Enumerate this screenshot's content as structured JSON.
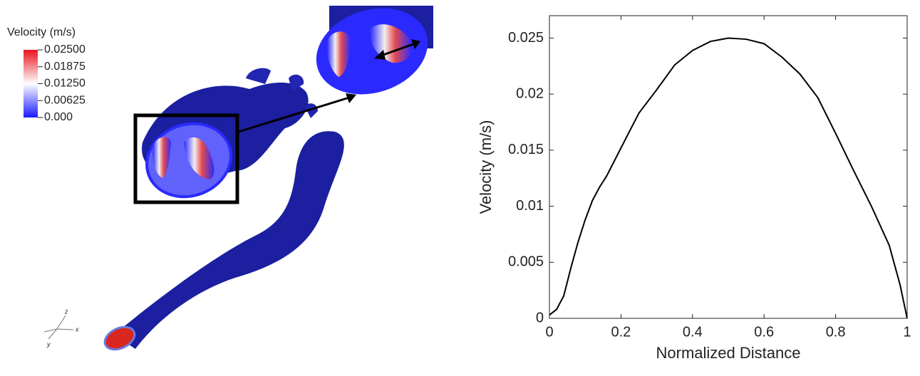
{
  "colorbar": {
    "title": "Velocity (m/s)",
    "ticks": [
      {
        "value": 0.025,
        "label": "0.02500"
      },
      {
        "value": 0.01875,
        "label": "0.01875"
      },
      {
        "value": 0.0125,
        "label": "0.01250"
      },
      {
        "value": 0.00625,
        "label": "0.00625"
      },
      {
        "value": 0,
        "label": "0.000"
      }
    ],
    "colors": [
      "#e8141c",
      "#ffffff",
      "#1a1aff"
    ]
  },
  "triad": [
    "z",
    "x",
    "y"
  ],
  "chart_data": {
    "type": "line",
    "xlabel": "Normalized Distance",
    "ylabel": "Velocity (m/s)",
    "color": "#000000",
    "x": [
      0,
      0.02,
      0.04,
      0.06,
      0.08,
      0.1,
      0.12,
      0.14,
      0.16,
      0.2,
      0.25,
      0.3,
      0.35,
      0.4,
      0.45,
      0.5,
      0.55,
      0.6,
      0.65,
      0.7,
      0.75,
      0.8,
      0.85,
      0.9,
      0.95,
      0.98,
      1
    ],
    "values": [
      0.0003,
      0.0008,
      0.002,
      0.0045,
      0.0068,
      0.0088,
      0.0105,
      0.0117,
      0.0127,
      0.0152,
      0.0183,
      0.0204,
      0.0226,
      0.0239,
      0.0247,
      0.025,
      0.0249,
      0.0245,
      0.0233,
      0.0218,
      0.0197,
      0.0165,
      0.0132,
      0.01,
      0.0065,
      0.003,
      0
    ],
    "xlim": [
      0,
      1
    ],
    "ylim": [
      0,
      0.027
    ],
    "xticks": [
      0,
      0.2,
      0.4,
      0.6,
      0.8,
      1
    ],
    "yticks": [
      0,
      0.005,
      0.01,
      0.015,
      0.02,
      0.025
    ]
  }
}
